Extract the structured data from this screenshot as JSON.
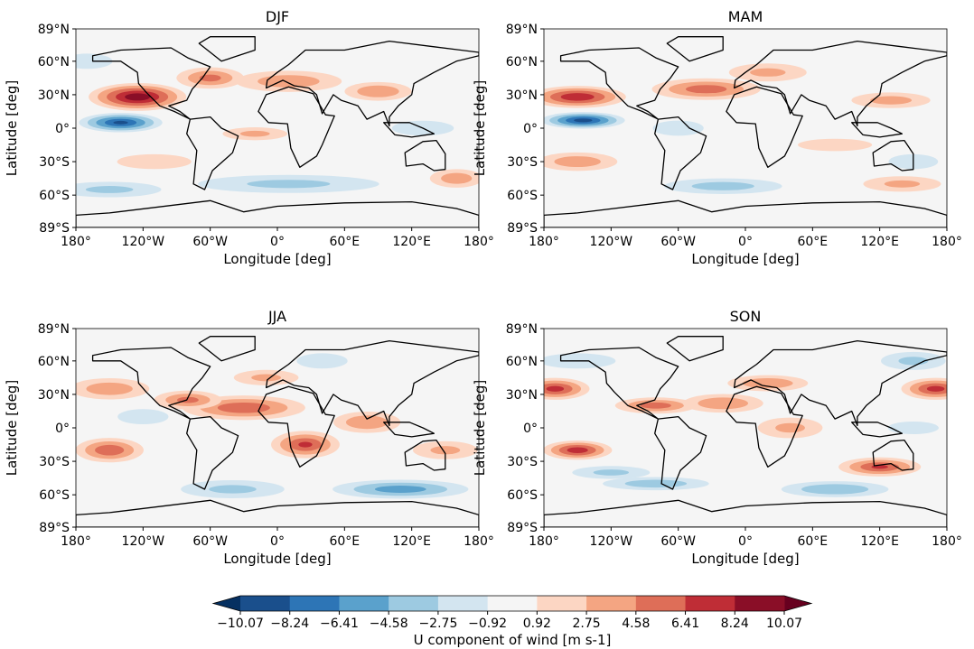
{
  "chart_data": {
    "type": "heatmap",
    "subtype": "filled-contour-map",
    "panels": [
      {
        "title": "DJF",
        "features": [
          [
            -125,
            28,
            9.5,
            35,
            10
          ],
          [
            -140,
            5,
            -8.5,
            30,
            7
          ],
          [
            -60,
            45,
            5,
            25,
            8
          ],
          [
            10,
            42,
            4,
            40,
            8
          ],
          [
            90,
            33,
            4.5,
            25,
            7
          ],
          [
            -20,
            -5,
            3,
            25,
            5
          ],
          [
            10,
            -50,
            -3,
            70,
            7
          ],
          [
            160,
            -45,
            4,
            20,
            7
          ],
          [
            -150,
            -55,
            -3,
            40,
            6
          ],
          [
            -110,
            -30,
            2,
            30,
            6
          ],
          [
            130,
            0,
            -2,
            25,
            6
          ],
          [
            -170,
            60,
            -2.5,
            20,
            6
          ]
        ]
      },
      {
        "title": "MAM",
        "features": [
          [
            -150,
            28,
            8,
            35,
            8
          ],
          [
            -145,
            7,
            -9,
            30,
            6
          ],
          [
            -35,
            35,
            5.5,
            40,
            8
          ],
          [
            20,
            50,
            3,
            30,
            7
          ],
          [
            130,
            25,
            3.5,
            30,
            6
          ],
          [
            -150,
            -30,
            4,
            30,
            7
          ],
          [
            -20,
            -52,
            -3.5,
            45,
            6
          ],
          [
            140,
            -50,
            3,
            30,
            6
          ],
          [
            -60,
            0,
            -2.5,
            20,
            6
          ],
          [
            80,
            -15,
            2,
            30,
            5
          ],
          [
            150,
            -30,
            -2,
            20,
            6
          ]
        ]
      },
      {
        "title": "JJA",
        "features": [
          [
            -30,
            18,
            6,
            45,
            9
          ],
          [
            -150,
            -20,
            6,
            25,
            9
          ],
          [
            25,
            -15,
            6.5,
            25,
            10
          ],
          [
            80,
            5,
            4.5,
            25,
            8
          ],
          [
            110,
            -55,
            -5.5,
            50,
            7
          ],
          [
            -80,
            25,
            5,
            25,
            7
          ],
          [
            -150,
            35,
            4,
            30,
            8
          ],
          [
            -10,
            45,
            3,
            25,
            6
          ],
          [
            150,
            -20,
            3,
            25,
            7
          ],
          [
            -40,
            -55,
            -3,
            40,
            7
          ],
          [
            -120,
            10,
            -2.5,
            20,
            6
          ],
          [
            40,
            60,
            -2.5,
            20,
            6
          ]
        ]
      },
      {
        "title": "SON",
        "features": [
          [
            -170,
            35,
            7,
            25,
            8
          ],
          [
            170,
            35,
            7,
            25,
            8
          ],
          [
            -150,
            -20,
            7.5,
            25,
            7
          ],
          [
            120,
            -35,
            6.5,
            30,
            7
          ],
          [
            -80,
            20,
            5.5,
            30,
            6
          ],
          [
            -20,
            22,
            4.5,
            30,
            7
          ],
          [
            20,
            40,
            4.5,
            30,
            6
          ],
          [
            40,
            0,
            3,
            25,
            8
          ],
          [
            -80,
            -50,
            -4,
            40,
            5
          ],
          [
            80,
            -55,
            -4.5,
            40,
            6
          ],
          [
            150,
            60,
            -3,
            25,
            7
          ],
          [
            -150,
            60,
            -2.5,
            30,
            6
          ],
          [
            -120,
            -40,
            -3,
            30,
            5
          ],
          [
            150,
            0,
            -2.5,
            20,
            5
          ]
        ]
      }
    ],
    "xlabel": "Longitude [deg]",
    "ylabel": "Latitude [deg]",
    "xlim": [
      -180,
      180
    ],
    "ylim": [
      -89,
      89
    ],
    "xticks": [
      "180°",
      "120°W",
      "60°W",
      "0°",
      "60°E",
      "120°E",
      "180°"
    ],
    "xtick_values": [
      -180,
      -120,
      -60,
      0,
      60,
      120,
      180
    ],
    "yticks": [
      "89°N",
      "60°N",
      "30°N",
      "0°",
      "30°S",
      "60°S",
      "89°S"
    ],
    "ytick_values": [
      89,
      60,
      30,
      0,
      -30,
      -60,
      -89
    ],
    "colorbar": {
      "label": "U component of wind [m s-1]",
      "levels": [
        "−10.07",
        "−8.24",
        "−6.41",
        "−4.58",
        "−2.75",
        "−0.92",
        "0.92",
        "2.75",
        "4.58",
        "6.41",
        "8.24",
        "10.07"
      ],
      "level_values": [
        -10.07,
        -8.24,
        -6.41,
        -4.58,
        -2.75,
        -0.92,
        0.92,
        2.75,
        4.58,
        6.41,
        8.24,
        10.07
      ],
      "extend": "both",
      "colormap": "RdBu_r",
      "colors": [
        "#1a4f8c",
        "#2d75b6",
        "#5aa1cc",
        "#9dcae1",
        "#d3e5f0",
        "#f5f5f5",
        "#fcd6c3",
        "#f4a582",
        "#de6e58",
        "#bf2d36",
        "#8a0e27"
      ],
      "under_color": "#053061",
      "over_color": "#67001f"
    }
  }
}
